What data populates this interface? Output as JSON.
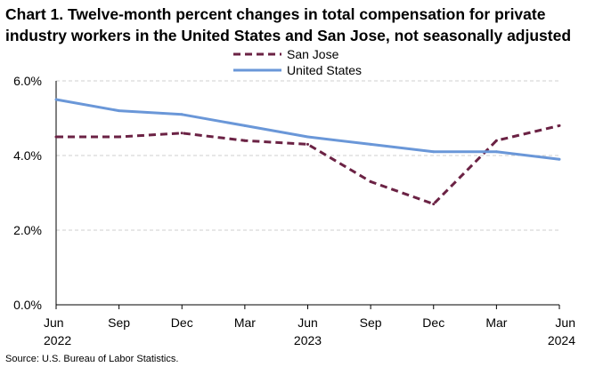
{
  "title_lines": [
    "Chart 1. Twelve-month percent changes in total compensation for private",
    "industry workers in the United States and San Jose, not seasonally adjusted"
  ],
  "source": "Source: U.S. Bureau of Labor Statistics.",
  "chart_data": {
    "type": "line",
    "title": "Chart 1. Twelve-month percent changes in total compensation for private industry workers in the United States and San Jose, not seasonally adjusted",
    "xlabel": "",
    "ylabel": "",
    "categories": [
      "Jun",
      "Sep",
      "Dec",
      "Mar",
      "Jun",
      "Sep",
      "Dec",
      "Mar",
      "Jun"
    ],
    "year_labels": [
      "2022",
      "",
      "",
      "",
      "2023",
      "",
      "",
      "",
      "2024"
    ],
    "y_ticks": [
      "0.0%",
      "2.0%",
      "4.0%",
      "6.0%"
    ],
    "ylim": [
      0,
      6
    ],
    "grid": true,
    "legend_position": "top-center",
    "series": [
      {
        "name": "San Jose",
        "style": "dashed",
        "color": "#6b2244",
        "values": [
          4.5,
          4.5,
          4.6,
          4.4,
          4.3,
          3.3,
          2.7,
          4.4,
          4.8
        ]
      },
      {
        "name": "United States",
        "style": "solid",
        "color": "#6a97d8",
        "values": [
          5.5,
          5.2,
          5.1,
          4.8,
          4.5,
          4.3,
          4.1,
          4.1,
          3.9
        ]
      }
    ]
  }
}
